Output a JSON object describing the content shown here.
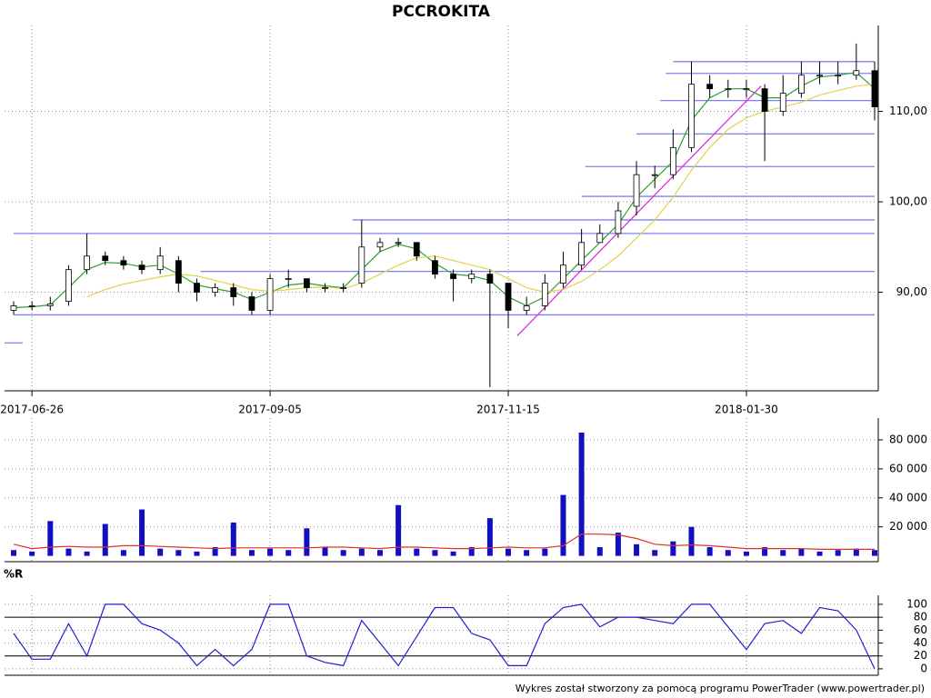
{
  "chart_data": [
    {
      "type": "candlestick",
      "title": "PCCROKITA",
      "categories": [
        null,
        "2017-06-26",
        null,
        null,
        null,
        null,
        null,
        null,
        null,
        null,
        null,
        null,
        null,
        null,
        "2017-09-05",
        null,
        null,
        null,
        null,
        null,
        null,
        null,
        null,
        null,
        null,
        null,
        null,
        "2017-11-15",
        null,
        null,
        null,
        null,
        null,
        null,
        null,
        null,
        null,
        null,
        null,
        null,
        "2018-01-30",
        null,
        null,
        null,
        null,
        null,
        null,
        null
      ],
      "open": [
        88,
        88.5,
        88.5,
        89,
        92.5,
        94,
        93.5,
        93,
        92.5,
        93.5,
        91,
        90,
        90.5,
        89.5,
        88,
        91.5,
        91.5,
        90.5,
        90.5,
        91,
        95,
        95.5,
        95.5,
        93.5,
        92,
        91.5,
        92,
        91,
        88,
        88.5,
        91,
        93,
        95.5,
        96.5,
        99.5,
        103,
        103,
        106,
        113,
        112.5,
        112.5,
        112.5,
        110,
        112,
        114,
        114,
        114,
        114.5
      ],
      "high": [
        89,
        89,
        89.5,
        93,
        96.5,
        94.5,
        94,
        93.5,
        95,
        94,
        91.5,
        91,
        91,
        90,
        92,
        92.5,
        91.5,
        91,
        91,
        98,
        96,
        96,
        95.5,
        94,
        92.5,
        92.5,
        92.5,
        91,
        89.5,
        92,
        94.5,
        97,
        97.5,
        100,
        104.5,
        104,
        108,
        115.5,
        114,
        113.5,
        113.5,
        113,
        114,
        115.5,
        115.5,
        115.5,
        117.5,
        115.5
      ],
      "low": [
        87.5,
        88,
        88,
        88.5,
        92,
        93,
        92.5,
        92,
        92,
        90,
        89,
        89.5,
        88.5,
        87.5,
        87.5,
        90.5,
        90,
        90,
        90,
        90.5,
        94.5,
        95,
        93.5,
        91.5,
        89,
        91,
        79.5,
        86,
        87.5,
        88,
        90.5,
        92.5,
        95.5,
        96,
        98.5,
        101.5,
        102.5,
        105.5,
        111.5,
        111.5,
        111.5,
        104.5,
        109.5,
        111.5,
        113,
        113,
        113.5,
        109
      ],
      "close": [
        88.5,
        88.5,
        88.7,
        92.5,
        94,
        93.5,
        93,
        92.5,
        94,
        91,
        90,
        90.5,
        89.5,
        88,
        91.5,
        91.5,
        90.5,
        90.5,
        90.5,
        95,
        95.5,
        95.5,
        94,
        92,
        91.5,
        92,
        91,
        88,
        88.5,
        91,
        93,
        95.5,
        96.5,
        99,
        103,
        103,
        106,
        113,
        112.5,
        112.5,
        112.5,
        110,
        112,
        114,
        114,
        114,
        114.5,
        110.5
      ],
      "up_color": "#ffffff",
      "down_color": "#000000",
      "series": [
        {
          "color": "#2e9e2e",
          "values": [
            88.3,
            88.4,
            88.6,
            90.5,
            92.5,
            93.3,
            93.2,
            92.8,
            93,
            92,
            90.8,
            90.4,
            90,
            89.2,
            90,
            90.8,
            91,
            90.7,
            90.5,
            92.5,
            94.5,
            95.3,
            94.8,
            93.2,
            92,
            91.8,
            91.3,
            89.5,
            88.5,
            89.5,
            91.5,
            93.5,
            95.5,
            97.5,
            100.5,
            102.5,
            104.5,
            109,
            111.5,
            112.5,
            112.5,
            111.5,
            111.5,
            112.8,
            113.8,
            114,
            114.3,
            112.5
          ]
        },
        {
          "color": "#e2d24a",
          "values": [
            null,
            null,
            null,
            null,
            89.5,
            90.3,
            90.9,
            91.3,
            91.7,
            92,
            91.8,
            91.3,
            90.8,
            90.3,
            90.1,
            90.3,
            90.5,
            90.6,
            90.4,
            91,
            92,
            93,
            93.8,
            94,
            93.5,
            93,
            92.5,
            91.5,
            90.5,
            90,
            90.3,
            91.2,
            92.5,
            94,
            96,
            98,
            100.5,
            103.5,
            106,
            108,
            109.3,
            110,
            110.5,
            111,
            111.8,
            112.3,
            112.8,
            113
          ]
        }
      ],
      "levels": [
        {
          "value": 87.5,
          "from": 0,
          "to": 47
        },
        {
          "value": 96.5,
          "from": 0,
          "to": 47
        },
        {
          "value": 92.3,
          "from": 10.2,
          "to": 47
        },
        {
          "value": 98,
          "from": 18.5,
          "to": 47
        },
        {
          "value": 100.6,
          "from": 31,
          "to": 47
        },
        {
          "value": 103.9,
          "from": 31.2,
          "to": 47
        },
        {
          "value": 107.5,
          "from": 34,
          "to": 47
        },
        {
          "value": 111.2,
          "from": 35.3,
          "to": 47
        },
        {
          "value": 114.2,
          "from": 35.6,
          "to": 47
        },
        {
          "value": 115.5,
          "from": 36,
          "to": 47
        },
        {
          "value": 84.4,
          "from": -0.5,
          "to": 0.5
        }
      ],
      "level_color": "#8080f0",
      "trendline": {
        "from": 27.5,
        "from_value": 85.2,
        "to": 40.8,
        "to_value": 112.8,
        "color": "#e020e0"
      },
      "ylim": [
        79.1,
        119.5
      ],
      "yticks": [
        {
          "value": 90,
          "label": "90,00"
        },
        {
          "value": 100,
          "label": "100,00"
        },
        {
          "value": 110,
          "label": "110,00"
        }
      ],
      "grid": true
    },
    {
      "type": "bar",
      "color": "#1010c0",
      "values": [
        4000,
        3000,
        24000,
        5000,
        3000,
        22000,
        4000,
        32000,
        5000,
        4000,
        3000,
        6000,
        23000,
        4000,
        5000,
        4000,
        19000,
        6000,
        4000,
        5000,
        4000,
        35000,
        5000,
        4000,
        3000,
        6000,
        26000,
        5000,
        4000,
        5000,
        42000,
        85000,
        6000,
        16000,
        8000,
        4000,
        10000,
        20000,
        6000,
        4000,
        3000,
        6000,
        4000,
        5000,
        3000,
        4000,
        5000,
        4000
      ],
      "series": [
        {
          "color": "#e03030",
          "values": [
            8000,
            5000,
            6000,
            6500,
            6000,
            6000,
            7000,
            7000,
            6500,
            6000,
            5500,
            5000,
            5500,
            5500,
            5500,
            5500,
            5500,
            6000,
            6000,
            5500,
            5000,
            6000,
            6000,
            5500,
            5000,
            5000,
            5500,
            6000,
            5500,
            5500,
            7000,
            15000,
            15000,
            14500,
            12000,
            8000,
            7000,
            7500,
            7000,
            6000,
            5000,
            5000,
            5000,
            5000,
            4500,
            4500,
            4500,
            4500
          ]
        }
      ],
      "ylim": [
        -4000,
        95000
      ],
      "yticks": [
        {
          "value": 20000,
          "label": "20 000"
        },
        {
          "value": 40000,
          "label": "40 000"
        },
        {
          "value": 60000,
          "label": "60 000"
        },
        {
          "value": 80000,
          "label": "80 000"
        }
      ],
      "grid": true
    },
    {
      "type": "line",
      "title": "%R",
      "color": "#2020d0",
      "values": [
        55,
        15,
        15,
        70,
        20,
        100,
        100,
        70,
        60,
        40,
        5,
        30,
        5,
        30,
        100,
        100,
        20,
        10,
        5,
        75,
        40,
        5,
        50,
        95,
        95,
        55,
        45,
        5,
        5,
        70,
        95,
        100,
        65,
        80,
        80,
        75,
        70,
        100,
        100,
        65,
        30,
        70,
        75,
        55,
        95,
        90,
        60,
        0
      ],
      "reference_lines": [
        20,
        80
      ],
      "ylim": [
        -10,
        114
      ],
      "yticks": [
        0,
        20,
        40,
        60,
        80,
        100
      ],
      "grid": true
    }
  ],
  "footer": "Wykres został stworzony za pomocą programu PowerTrader (www.powertrader.pl)"
}
